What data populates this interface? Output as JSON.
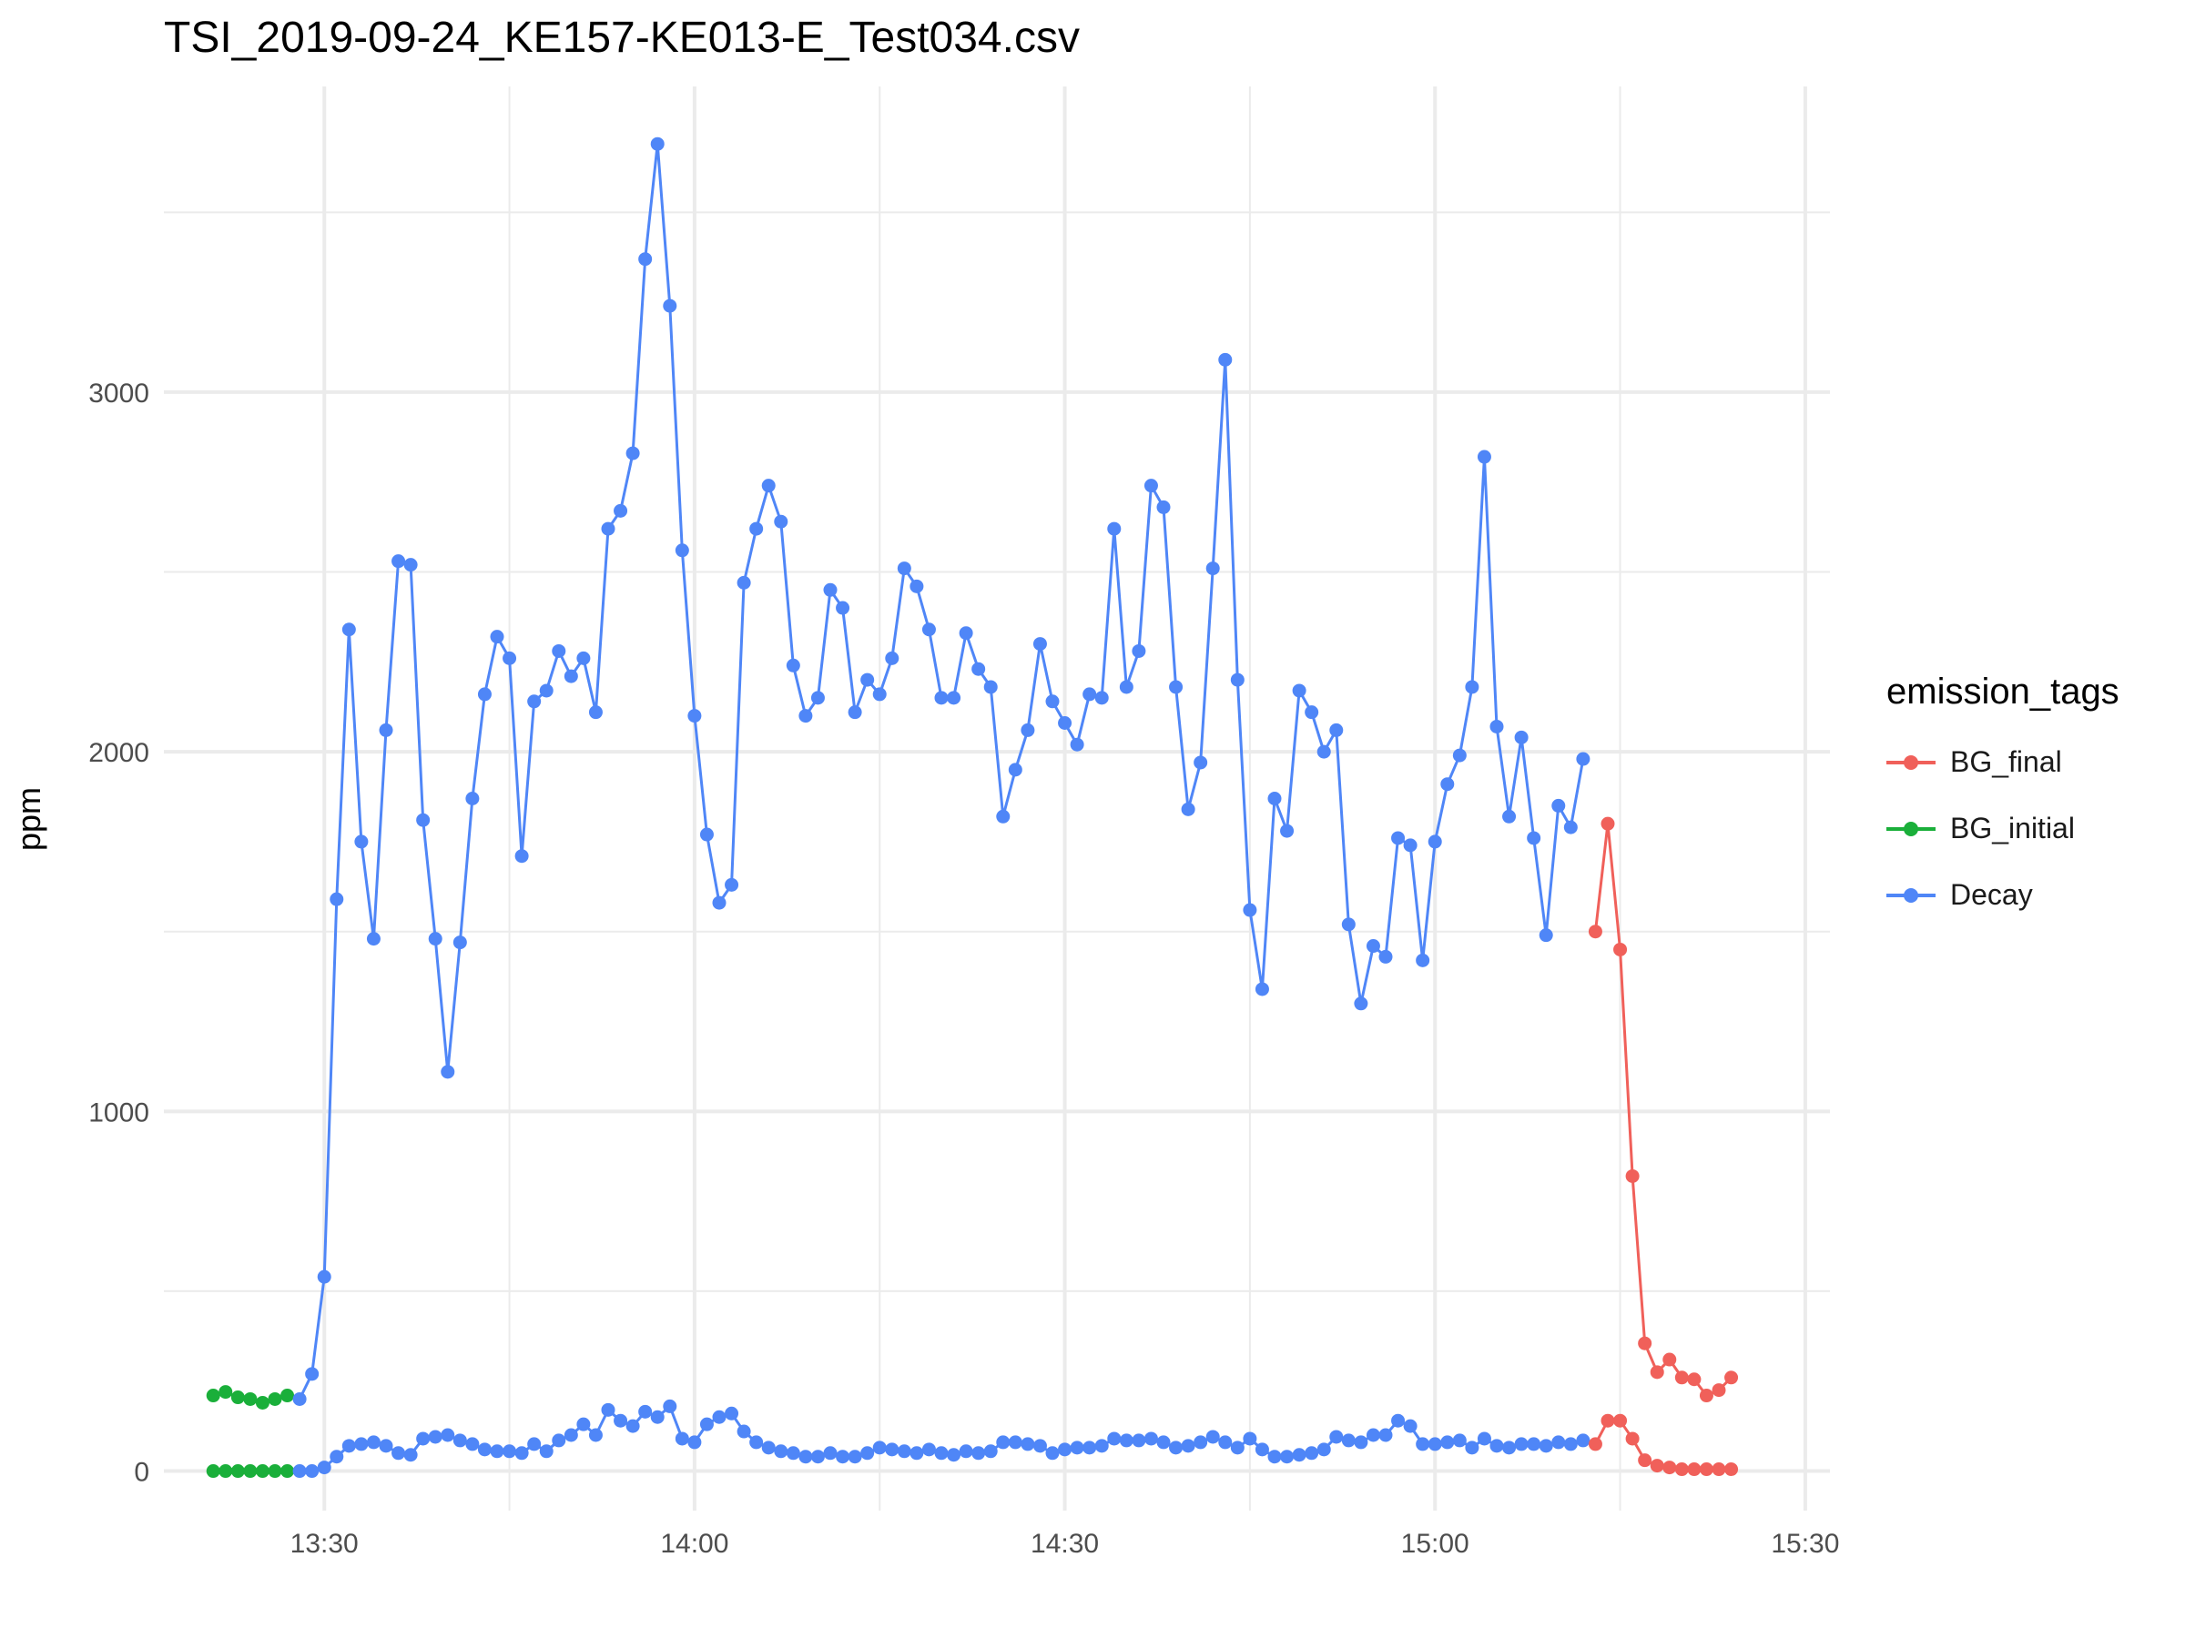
{
  "chart_data": {
    "type": "line",
    "title": "TSI_2019-09-24_KE157-KE013-E_Test034.csv",
    "xlabel": "",
    "ylabel": "ppm",
    "x_axis": {
      "type": "time",
      "ticks": [
        "13:30",
        "14:00",
        "14:30",
        "15:00",
        "15:30"
      ],
      "range": [
        "13:17",
        "15:32"
      ]
    },
    "y_axis": {
      "ticks": [
        0,
        1000,
        2000,
        3000
      ],
      "range": [
        -110,
        3850
      ]
    },
    "grid": true,
    "legend": {
      "title": "emission_tags",
      "position": "right",
      "entries": [
        "BG_final",
        "BG_initial",
        "Decay"
      ]
    },
    "series": [
      {
        "name": "BG_initial",
        "color": "#1AAF3A",
        "lines": [
          {
            "x": [
              "13:21",
              "13:22",
              "13:23",
              "13:24",
              "13:25",
              "13:26",
              "13:27"
            ],
            "y": [
              210,
              220,
              205,
              200,
              190,
              200,
              210
            ]
          },
          {
            "x": [
              "13:21",
              "13:22",
              "13:23",
              "13:24",
              "13:25",
              "13:26",
              "13:27"
            ],
            "y": [
              0,
              0,
              0,
              0,
              0,
              0,
              0
            ]
          }
        ]
      },
      {
        "name": "Decay",
        "color": "#4F86F7",
        "lines": [
          {
            "x": [
              "13:28",
              "13:29",
              "13:30",
              "13:31",
              "13:32",
              "13:33",
              "13:34",
              "13:35",
              "13:36",
              "13:37",
              "13:38",
              "13:39",
              "13:40",
              "13:41",
              "13:42",
              "13:43",
              "13:44",
              "13:45",
              "13:46",
              "13:47",
              "13:48",
              "13:49",
              "13:50",
              "13:51",
              "13:52",
              "13:53",
              "13:54",
              "13:55",
              "13:56",
              "13:57",
              "13:58",
              "13:59",
              "14:00",
              "14:01",
              "14:02",
              "14:03",
              "14:04",
              "14:05",
              "14:06",
              "14:07",
              "14:08",
              "14:09",
              "14:10",
              "14:11",
              "14:12",
              "14:13",
              "14:14",
              "14:15",
              "14:16",
              "14:17",
              "14:18",
              "14:19",
              "14:20",
              "14:21",
              "14:22",
              "14:23",
              "14:24",
              "14:25",
              "14:26",
              "14:27",
              "14:28",
              "14:29",
              "14:30",
              "14:31",
              "14:32",
              "14:33",
              "14:34",
              "14:35",
              "14:36",
              "14:37",
              "14:38",
              "14:39",
              "14:40",
              "14:41",
              "14:42",
              "14:43",
              "14:44",
              "14:45",
              "14:46",
              "14:47",
              "14:48",
              "14:49",
              "14:50",
              "14:51",
              "14:52",
              "14:53",
              "14:54",
              "14:55",
              "14:56",
              "14:57",
              "14:58",
              "14:59",
              "15:00",
              "15:01",
              "15:02",
              "15:03",
              "15:04",
              "15:05",
              "15:06",
              "15:07",
              "15:08",
              "15:09",
              "15:10",
              "15:11",
              "15:12"
            ],
            "y": [
              200,
              270,
              540,
              1590,
              2340,
              1750,
              1480,
              2060,
              2530,
              2520,
              1810,
              1480,
              1110,
              1470,
              1870,
              2160,
              2320,
              2260,
              1710,
              2140,
              2170,
              2280,
              2210,
              2260,
              2110,
              2620,
              2670,
              2830,
              3370,
              3690,
              3240,
              2560,
              2100,
              1770,
              1580,
              1630,
              2470,
              2620,
              2740,
              2640,
              2240,
              2100,
              2150,
              2450,
              2400,
              2110,
              2200,
              2160,
              2260,
              2510,
              2460,
              2340,
              2150,
              2150,
              2330,
              2230,
              2180,
              1820,
              1950,
              2060,
              2300,
              2140,
              2080,
              2020,
              2160,
              2150,
              2620,
              2180,
              2280,
              2740,
              2680,
              2180,
              1840,
              1970,
              2510,
              3090,
              2200,
              1560,
              1340,
              1870,
              1780,
              2170,
              2110,
              2000,
              2060,
              1520,
              1300,
              1460,
              1430,
              1760,
              1740,
              1420,
              1750,
              1910,
              1990,
              2180,
              2820,
              2070,
              1820,
              2040,
              1760,
              1490,
              1850,
              1790,
              1980
            ]
          },
          {
            "x": [
              "13:28",
              "13:29",
              "13:30",
              "13:31",
              "13:32",
              "13:33",
              "13:34",
              "13:35",
              "13:36",
              "13:37",
              "13:38",
              "13:39",
              "13:40",
              "13:41",
              "13:42",
              "13:43",
              "13:44",
              "13:45",
              "13:46",
              "13:47",
              "13:48",
              "13:49",
              "13:50",
              "13:51",
              "13:52",
              "13:53",
              "13:54",
              "13:55",
              "13:56",
              "13:57",
              "13:58",
              "13:59",
              "14:00",
              "14:01",
              "14:02",
              "14:03",
              "14:04",
              "14:05",
              "14:06",
              "14:07",
              "14:08",
              "14:09",
              "14:10",
              "14:11",
              "14:12",
              "14:13",
              "14:14",
              "14:15",
              "14:16",
              "14:17",
              "14:18",
              "14:19",
              "14:20",
              "14:21",
              "14:22",
              "14:23",
              "14:24",
              "14:25",
              "14:26",
              "14:27",
              "14:28",
              "14:29",
              "14:30",
              "14:31",
              "14:32",
              "14:33",
              "14:34",
              "14:35",
              "14:36",
              "14:37",
              "14:38",
              "14:39",
              "14:40",
              "14:41",
              "14:42",
              "14:43",
              "14:44",
              "14:45",
              "14:46",
              "14:47",
              "14:48",
              "14:49",
              "14:50",
              "14:51",
              "14:52",
              "14:53",
              "14:54",
              "14:55",
              "14:56",
              "14:57",
              "14:58",
              "14:59",
              "15:00",
              "15:01",
              "15:02",
              "15:03",
              "15:04",
              "15:05",
              "15:06",
              "15:07",
              "15:08",
              "15:09",
              "15:10",
              "15:11",
              "15:12"
            ],
            "y": [
              0,
              0,
              10,
              40,
              70,
              75,
              80,
              70,
              50,
              45,
              90,
              95,
              100,
              85,
              75,
              60,
              55,
              55,
              50,
              75,
              55,
              85,
              100,
              130,
              100,
              170,
              140,
              125,
              165,
              150,
              180,
              90,
              80,
              130,
              150,
              160,
              110,
              80,
              65,
              55,
              50,
              40,
              40,
              50,
              40,
              40,
              50,
              65,
              60,
              55,
              50,
              60,
              50,
              45,
              55,
              50,
              55,
              80,
              80,
              75,
              70,
              50,
              60,
              65,
              65,
              70,
              90,
              85,
              85,
              90,
              80,
              65,
              70,
              80,
              95,
              80,
              65,
              90,
              60,
              40,
              40,
              45,
              50,
              60,
              95,
              85,
              80,
              100,
              100,
              140,
              125,
              75,
              75,
              80,
              85,
              65,
              90,
              70,
              65,
              75,
              75,
              70,
              80,
              75,
              85
            ]
          }
        ]
      },
      {
        "name": "BG_final",
        "color": "#F0605A",
        "lines": [
          {
            "x": [
              "15:13",
              "15:14",
              "15:15",
              "15:16",
              "15:17",
              "15:18",
              "15:19",
              "15:20",
              "15:21",
              "15:22",
              "15:23",
              "15:24"
            ],
            "y": [
              1500,
              1800,
              1450,
              820,
              355,
              275,
              310,
              260,
              255,
              210,
              225,
              260
            ]
          },
          {
            "x": [
              "15:13",
              "15:14",
              "15:15",
              "15:16",
              "15:17",
              "15:18",
              "15:19",
              "15:20",
              "15:21",
              "15:22",
              "15:23",
              "15:24"
            ],
            "y": [
              75,
              140,
              140,
              90,
              30,
              15,
              10,
              5,
              5,
              5,
              5,
              5
            ]
          }
        ]
      }
    ]
  }
}
